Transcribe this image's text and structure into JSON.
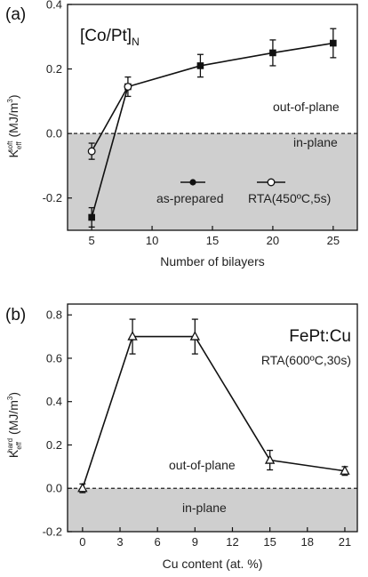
{
  "chart_data": [
    {
      "type": "line",
      "panel_label": "(a)",
      "title_main": "[Co/Pt]",
      "title_sub": "N",
      "xlabel": "Number of bilayers",
      "ylabel_main": "K",
      "ylabel_sub": "eff",
      "ylabel_sup": "soft",
      "ylabel_units": "(MJ/m",
      "ylabel_units_sup": "3",
      "ylabel_units_end": ")",
      "xlim": [
        3,
        27
      ],
      "ylim": [
        -0.3,
        0.4
      ],
      "x_ticks": [
        5,
        10,
        15,
        20,
        25
      ],
      "x_tick_labels": [
        "5",
        "10",
        "15",
        "20",
        "25"
      ],
      "y_ticks": [
        -0.2,
        0.0,
        0.2,
        0.4
      ],
      "y_tick_labels": [
        "-0.2",
        "0.0",
        "0.2",
        "0.4"
      ],
      "zero_line": 0.0,
      "shaded_region": "in-plane",
      "annotations": {
        "upper": "out-of-plane",
        "lower": "in-plane"
      },
      "legend_position": "bottom",
      "series": [
        {
          "name": "as-prepared",
          "marker": "filled-square",
          "legend_marker": "filled-circle",
          "x": [
            5,
            8,
            14,
            20,
            25
          ],
          "y": [
            -0.26,
            0.145,
            0.21,
            0.25,
            0.28
          ],
          "err": [
            0.03,
            0.03,
            0.035,
            0.04,
            0.045
          ]
        },
        {
          "name": "RTA(450ºC,5s)",
          "marker": "open-circle",
          "legend_marker": "open-circle",
          "x": [
            5,
            8
          ],
          "y": [
            -0.055,
            0.145
          ],
          "err": [
            0.025,
            0.0
          ]
        }
      ]
    },
    {
      "type": "line",
      "panel_label": "(b)",
      "title_main": "FePt:Cu",
      "condition": "RTA(600ºC,30s)",
      "xlabel": "Cu content (at. %)",
      "ylabel_main": "K",
      "ylabel_sub": "eff",
      "ylabel_sup": "hard",
      "ylabel_units": "(MJ/m",
      "ylabel_units_sup": "3",
      "ylabel_units_end": ")",
      "xlim": [
        -1.2,
        22
      ],
      "ylim": [
        -0.2,
        0.85
      ],
      "x_ticks": [
        0,
        3,
        6,
        9,
        12,
        15,
        18,
        21
      ],
      "x_tick_labels": [
        "0",
        "3",
        "6",
        "9",
        "12",
        "15",
        "18",
        "21"
      ],
      "y_ticks": [
        -0.2,
        0.0,
        0.2,
        0.4,
        0.6,
        0.8
      ],
      "y_tick_labels": [
        "-0.2",
        "0.0",
        "0.2",
        "0.4",
        "0.6",
        "0.8"
      ],
      "zero_line": 0.0,
      "shaded_region": "in-plane",
      "annotations": {
        "upper": "out-of-plane",
        "lower": "in-plane"
      },
      "series": [
        {
          "name": "",
          "marker": "open-triangle",
          "x": [
            0,
            4,
            9,
            15,
            21
          ],
          "y": [
            0.0,
            0.7,
            0.7,
            0.13,
            0.08
          ],
          "err": [
            0.02,
            0.08,
            0.08,
            0.045,
            0.02
          ]
        }
      ]
    }
  ]
}
